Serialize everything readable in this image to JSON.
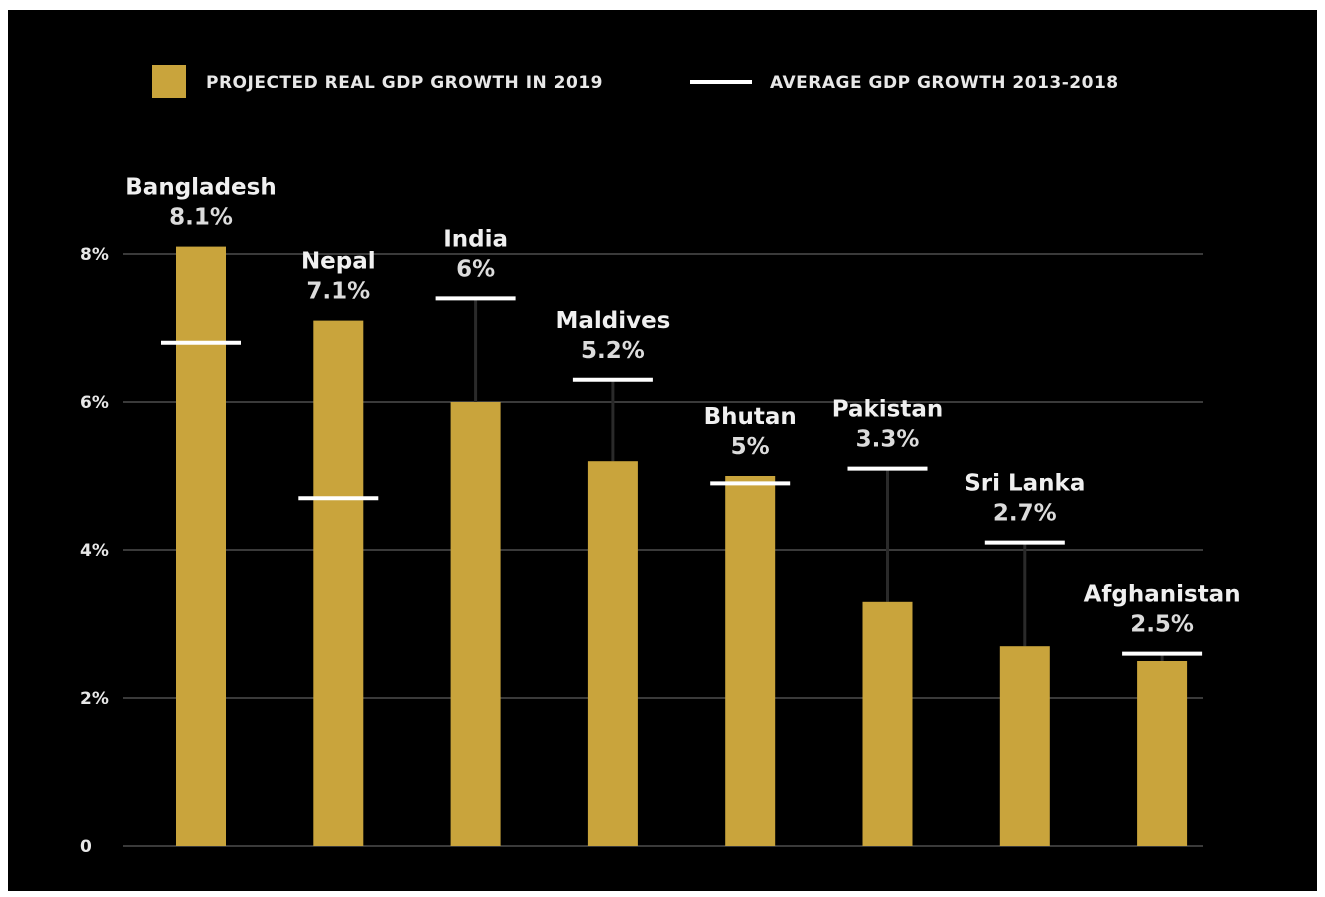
{
  "legend": {
    "bar_label": "PROJECTED REAL GDP GROWTH IN 2019",
    "line_label": "AVERAGE GDP GROWTH 2013-2018"
  },
  "colors": {
    "background": "#000000",
    "bar": "#c9a43c",
    "average_line": "#ffffff",
    "grid": "#3a3a3a",
    "stem": "#2a2a2a"
  },
  "chart_data": {
    "type": "bar",
    "categories": [
      "Bangladesh",
      "Nepal",
      "India",
      "Maldives",
      "Bhutan",
      "Pakistan",
      "Sri Lanka",
      "Afghanistan"
    ],
    "series": [
      {
        "name": "PROJECTED REAL GDP GROWTH IN 2019",
        "values": [
          8.1,
          7.1,
          6.0,
          5.2,
          5.0,
          3.3,
          2.7,
          2.5
        ]
      },
      {
        "name": "AVERAGE GDP GROWTH 2013-2018",
        "values": [
          6.8,
          4.7,
          7.4,
          6.3,
          4.9,
          5.1,
          4.1,
          2.6
        ]
      }
    ],
    "value_labels": [
      "8.1%",
      "7.1%",
      "6%",
      "5.2%",
      "5%",
      "3.3%",
      "2.7%",
      "2.5%"
    ],
    "y_ticks": [
      0,
      2,
      4,
      6,
      8
    ],
    "y_tick_labels": [
      "0",
      "2%",
      "4%",
      "6%",
      "8%"
    ],
    "ylim": [
      0,
      8.1
    ],
    "grid": true,
    "legend_position": "top"
  }
}
